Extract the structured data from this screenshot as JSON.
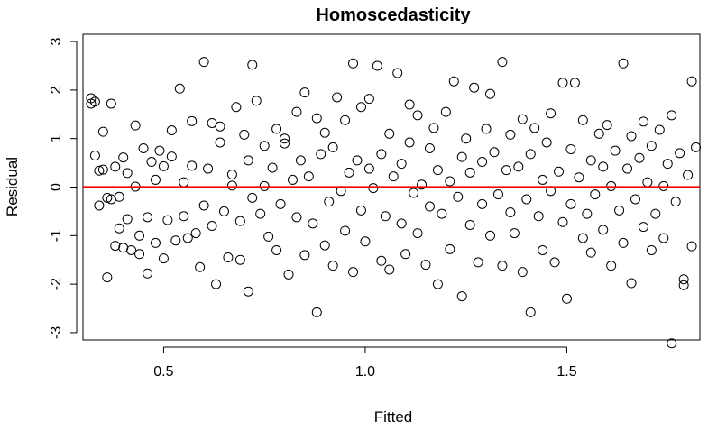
{
  "chart_data": {
    "type": "scatter",
    "title": "Homoscedasticity",
    "xlabel": "Fitted",
    "ylabel": "Residual",
    "xlim": [
      0.3,
      1.83
    ],
    "ylim": [
      -3.15,
      3.15
    ],
    "xticks": [
      0.5,
      1.0,
      1.5
    ],
    "xtick_labels": [
      "0.5",
      "1.0",
      "1.5"
    ],
    "yticks": [
      -3,
      -2,
      -1,
      0,
      1,
      2,
      3
    ],
    "ytick_labels": [
      "-3",
      "-2",
      "-1",
      "0",
      "1",
      "2",
      "3"
    ],
    "reference_line": {
      "y": 0,
      "color": "#ff0000"
    },
    "marker": "open-circle",
    "grid": false,
    "points": [
      [
        0.32,
        1.72
      ],
      [
        0.32,
        1.83
      ],
      [
        0.33,
        1.76
      ],
      [
        0.33,
        0.65
      ],
      [
        0.34,
        0.34
      ],
      [
        0.34,
        -0.38
      ],
      [
        0.35,
        1.14
      ],
      [
        0.35,
        0.36
      ],
      [
        0.36,
        -0.22
      ],
      [
        0.36,
        -1.86
      ],
      [
        0.37,
        -0.25
      ],
      [
        0.37,
        1.72
      ],
      [
        0.38,
        0.42
      ],
      [
        0.38,
        -1.21
      ],
      [
        0.39,
        -0.2
      ],
      [
        0.39,
        -0.85
      ],
      [
        0.4,
        -1.25
      ],
      [
        0.4,
        0.61
      ],
      [
        0.41,
        0.29
      ],
      [
        0.41,
        -0.66
      ],
      [
        0.42,
        -1.3
      ],
      [
        0.43,
        1.27
      ],
      [
        0.43,
        0.01
      ],
      [
        0.44,
        -1.38
      ],
      [
        0.44,
        -1.0
      ],
      [
        0.45,
        0.8
      ],
      [
        0.46,
        -0.62
      ],
      [
        0.46,
        -1.78
      ],
      [
        0.47,
        0.52
      ],
      [
        0.48,
        -1.15
      ],
      [
        0.48,
        0.15
      ],
      [
        0.49,
        0.75
      ],
      [
        0.5,
        -1.47
      ],
      [
        0.5,
        0.43
      ],
      [
        0.51,
        -0.68
      ],
      [
        0.52,
        1.17
      ],
      [
        0.52,
        0.63
      ],
      [
        0.53,
        -1.1
      ],
      [
        0.54,
        2.03
      ],
      [
        0.55,
        -0.6
      ],
      [
        0.55,
        0.1
      ],
      [
        0.56,
        -1.05
      ],
      [
        0.57,
        1.36
      ],
      [
        0.57,
        0.44
      ],
      [
        0.58,
        -0.95
      ],
      [
        0.59,
        -1.65
      ],
      [
        0.6,
        2.58
      ],
      [
        0.6,
        -0.38
      ],
      [
        0.61,
        0.38
      ],
      [
        0.62,
        1.32
      ],
      [
        0.62,
        -0.8
      ],
      [
        0.63,
        -2.0
      ],
      [
        0.64,
        0.92
      ],
      [
        0.64,
        1.25
      ],
      [
        0.65,
        -0.5
      ],
      [
        0.66,
        -1.45
      ],
      [
        0.67,
        0.26
      ],
      [
        0.67,
        0.03
      ],
      [
        0.68,
        1.65
      ],
      [
        0.69,
        -1.5
      ],
      [
        0.69,
        -0.7
      ],
      [
        0.7,
        1.08
      ],
      [
        0.71,
        0.55
      ],
      [
        0.71,
        -2.15
      ],
      [
        0.72,
        -0.22
      ],
      [
        0.72,
        2.52
      ],
      [
        0.73,
        1.78
      ],
      [
        0.74,
        -0.55
      ],
      [
        0.75,
        0.02
      ],
      [
        0.75,
        0.85
      ],
      [
        0.76,
        -1.02
      ],
      [
        0.77,
        0.4
      ],
      [
        0.78,
        -1.3
      ],
      [
        0.78,
        1.2
      ],
      [
        0.79,
        -0.35
      ],
      [
        0.8,
        0.9
      ],
      [
        0.8,
        1.0
      ],
      [
        0.81,
        -1.8
      ],
      [
        0.82,
        0.15
      ],
      [
        0.83,
        1.55
      ],
      [
        0.83,
        -0.62
      ],
      [
        0.84,
        0.55
      ],
      [
        0.85,
        -1.4
      ],
      [
        0.85,
        1.95
      ],
      [
        0.86,
        0.22
      ],
      [
        0.87,
        -0.75
      ],
      [
        0.88,
        1.42
      ],
      [
        0.88,
        -2.58
      ],
      [
        0.89,
        0.68
      ],
      [
        0.9,
        -1.2
      ],
      [
        0.9,
        1.12
      ],
      [
        0.91,
        -0.3
      ],
      [
        0.92,
        0.82
      ],
      [
        0.92,
        -1.62
      ],
      [
        0.93,
        1.85
      ],
      [
        0.94,
        -0.08
      ],
      [
        0.95,
        -0.9
      ],
      [
        0.95,
        1.38
      ],
      [
        0.96,
        0.3
      ],
      [
        0.97,
        -1.75
      ],
      [
        0.97,
        2.55
      ],
      [
        0.98,
        0.55
      ],
      [
        0.99,
        -0.48
      ],
      [
        0.99,
        1.65
      ],
      [
        1.0,
        -1.12
      ],
      [
        1.01,
        0.38
      ],
      [
        1.01,
        1.82
      ],
      [
        1.02,
        -0.02
      ],
      [
        1.03,
        2.5
      ],
      [
        1.04,
        -1.52
      ],
      [
        1.04,
        0.68
      ],
      [
        1.05,
        -0.6
      ],
      [
        1.06,
        1.1
      ],
      [
        1.06,
        -1.7
      ],
      [
        1.07,
        0.22
      ],
      [
        1.08,
        2.35
      ],
      [
        1.09,
        -0.75
      ],
      [
        1.09,
        0.48
      ],
      [
        1.1,
        -1.38
      ],
      [
        1.11,
        1.7
      ],
      [
        1.11,
        0.92
      ],
      [
        1.12,
        -0.12
      ],
      [
        1.13,
        -0.95
      ],
      [
        1.13,
        1.48
      ],
      [
        1.14,
        0.05
      ],
      [
        1.15,
        -1.6
      ],
      [
        1.16,
        0.8
      ],
      [
        1.16,
        -0.4
      ],
      [
        1.17,
        1.22
      ],
      [
        1.18,
        -2.0
      ],
      [
        1.18,
        0.35
      ],
      [
        1.19,
        -0.55
      ],
      [
        1.2,
        1.55
      ],
      [
        1.21,
        -1.28
      ],
      [
        1.21,
        0.12
      ],
      [
        1.22,
        2.18
      ],
      [
        1.23,
        -0.2
      ],
      [
        1.24,
        0.62
      ],
      [
        1.24,
        -2.25
      ],
      [
        1.25,
        1.0
      ],
      [
        1.26,
        -0.78
      ],
      [
        1.26,
        0.3
      ],
      [
        1.27,
        2.05
      ],
      [
        1.28,
        -1.55
      ],
      [
        1.29,
        0.52
      ],
      [
        1.29,
        -0.35
      ],
      [
        1.3,
        1.2
      ],
      [
        1.31,
        1.92
      ],
      [
        1.31,
        -1.0
      ],
      [
        1.32,
        0.72
      ],
      [
        1.33,
        -0.15
      ],
      [
        1.34,
        2.58
      ],
      [
        1.34,
        -1.62
      ],
      [
        1.35,
        0.35
      ],
      [
        1.36,
        -0.52
      ],
      [
        1.36,
        1.08
      ],
      [
        1.37,
        -0.95
      ],
      [
        1.38,
        0.42
      ],
      [
        1.39,
        1.4
      ],
      [
        1.39,
        -1.75
      ],
      [
        1.4,
        -0.25
      ],
      [
        1.41,
        0.68
      ],
      [
        1.41,
        -2.58
      ],
      [
        1.42,
        1.22
      ],
      [
        1.43,
        -0.6
      ],
      [
        1.44,
        0.15
      ],
      [
        1.44,
        -1.3
      ],
      [
        1.45,
        0.92
      ],
      [
        1.46,
        -0.08
      ],
      [
        1.46,
        1.52
      ],
      [
        1.47,
        -1.55
      ],
      [
        1.48,
        0.32
      ],
      [
        1.49,
        -0.72
      ],
      [
        1.49,
        2.15
      ],
      [
        1.5,
        -2.3
      ],
      [
        1.51,
        0.78
      ],
      [
        1.51,
        -0.35
      ],
      [
        1.52,
        2.15
      ],
      [
        1.53,
        0.2
      ],
      [
        1.54,
        -1.05
      ],
      [
        1.54,
        1.38
      ],
      [
        1.55,
        -0.55
      ],
      [
        1.56,
        0.55
      ],
      [
        1.56,
        -1.35
      ],
      [
        1.57,
        -0.15
      ],
      [
        1.58,
        1.1
      ],
      [
        1.59,
        -0.88
      ],
      [
        1.59,
        0.42
      ],
      [
        1.6,
        1.28
      ],
      [
        1.61,
        -1.62
      ],
      [
        1.61,
        0.02
      ],
      [
        1.62,
        0.75
      ],
      [
        1.63,
        -0.48
      ],
      [
        1.64,
        2.55
      ],
      [
        1.64,
        -1.15
      ],
      [
        1.65,
        0.38
      ],
      [
        1.66,
        -1.98
      ],
      [
        1.66,
        1.05
      ],
      [
        1.67,
        -0.25
      ],
      [
        1.68,
        0.6
      ],
      [
        1.69,
        -0.82
      ],
      [
        1.69,
        1.35
      ],
      [
        1.7,
        0.1
      ],
      [
        1.71,
        -1.3
      ],
      [
        1.71,
        0.85
      ],
      [
        1.72,
        -0.55
      ],
      [
        1.73,
        1.18
      ],
      [
        1.74,
        0.02
      ],
      [
        1.74,
        -1.05
      ],
      [
        1.75,
        0.48
      ],
      [
        1.76,
        -3.22
      ],
      [
        1.76,
        1.48
      ],
      [
        1.77,
        -0.3
      ],
      [
        1.78,
        0.7
      ],
      [
        1.79,
        -2.02
      ],
      [
        1.79,
        -1.9
      ],
      [
        1.8,
        0.25
      ],
      [
        1.81,
        2.18
      ],
      [
        1.81,
        -1.22
      ],
      [
        1.82,
        0.82
      ]
    ]
  }
}
